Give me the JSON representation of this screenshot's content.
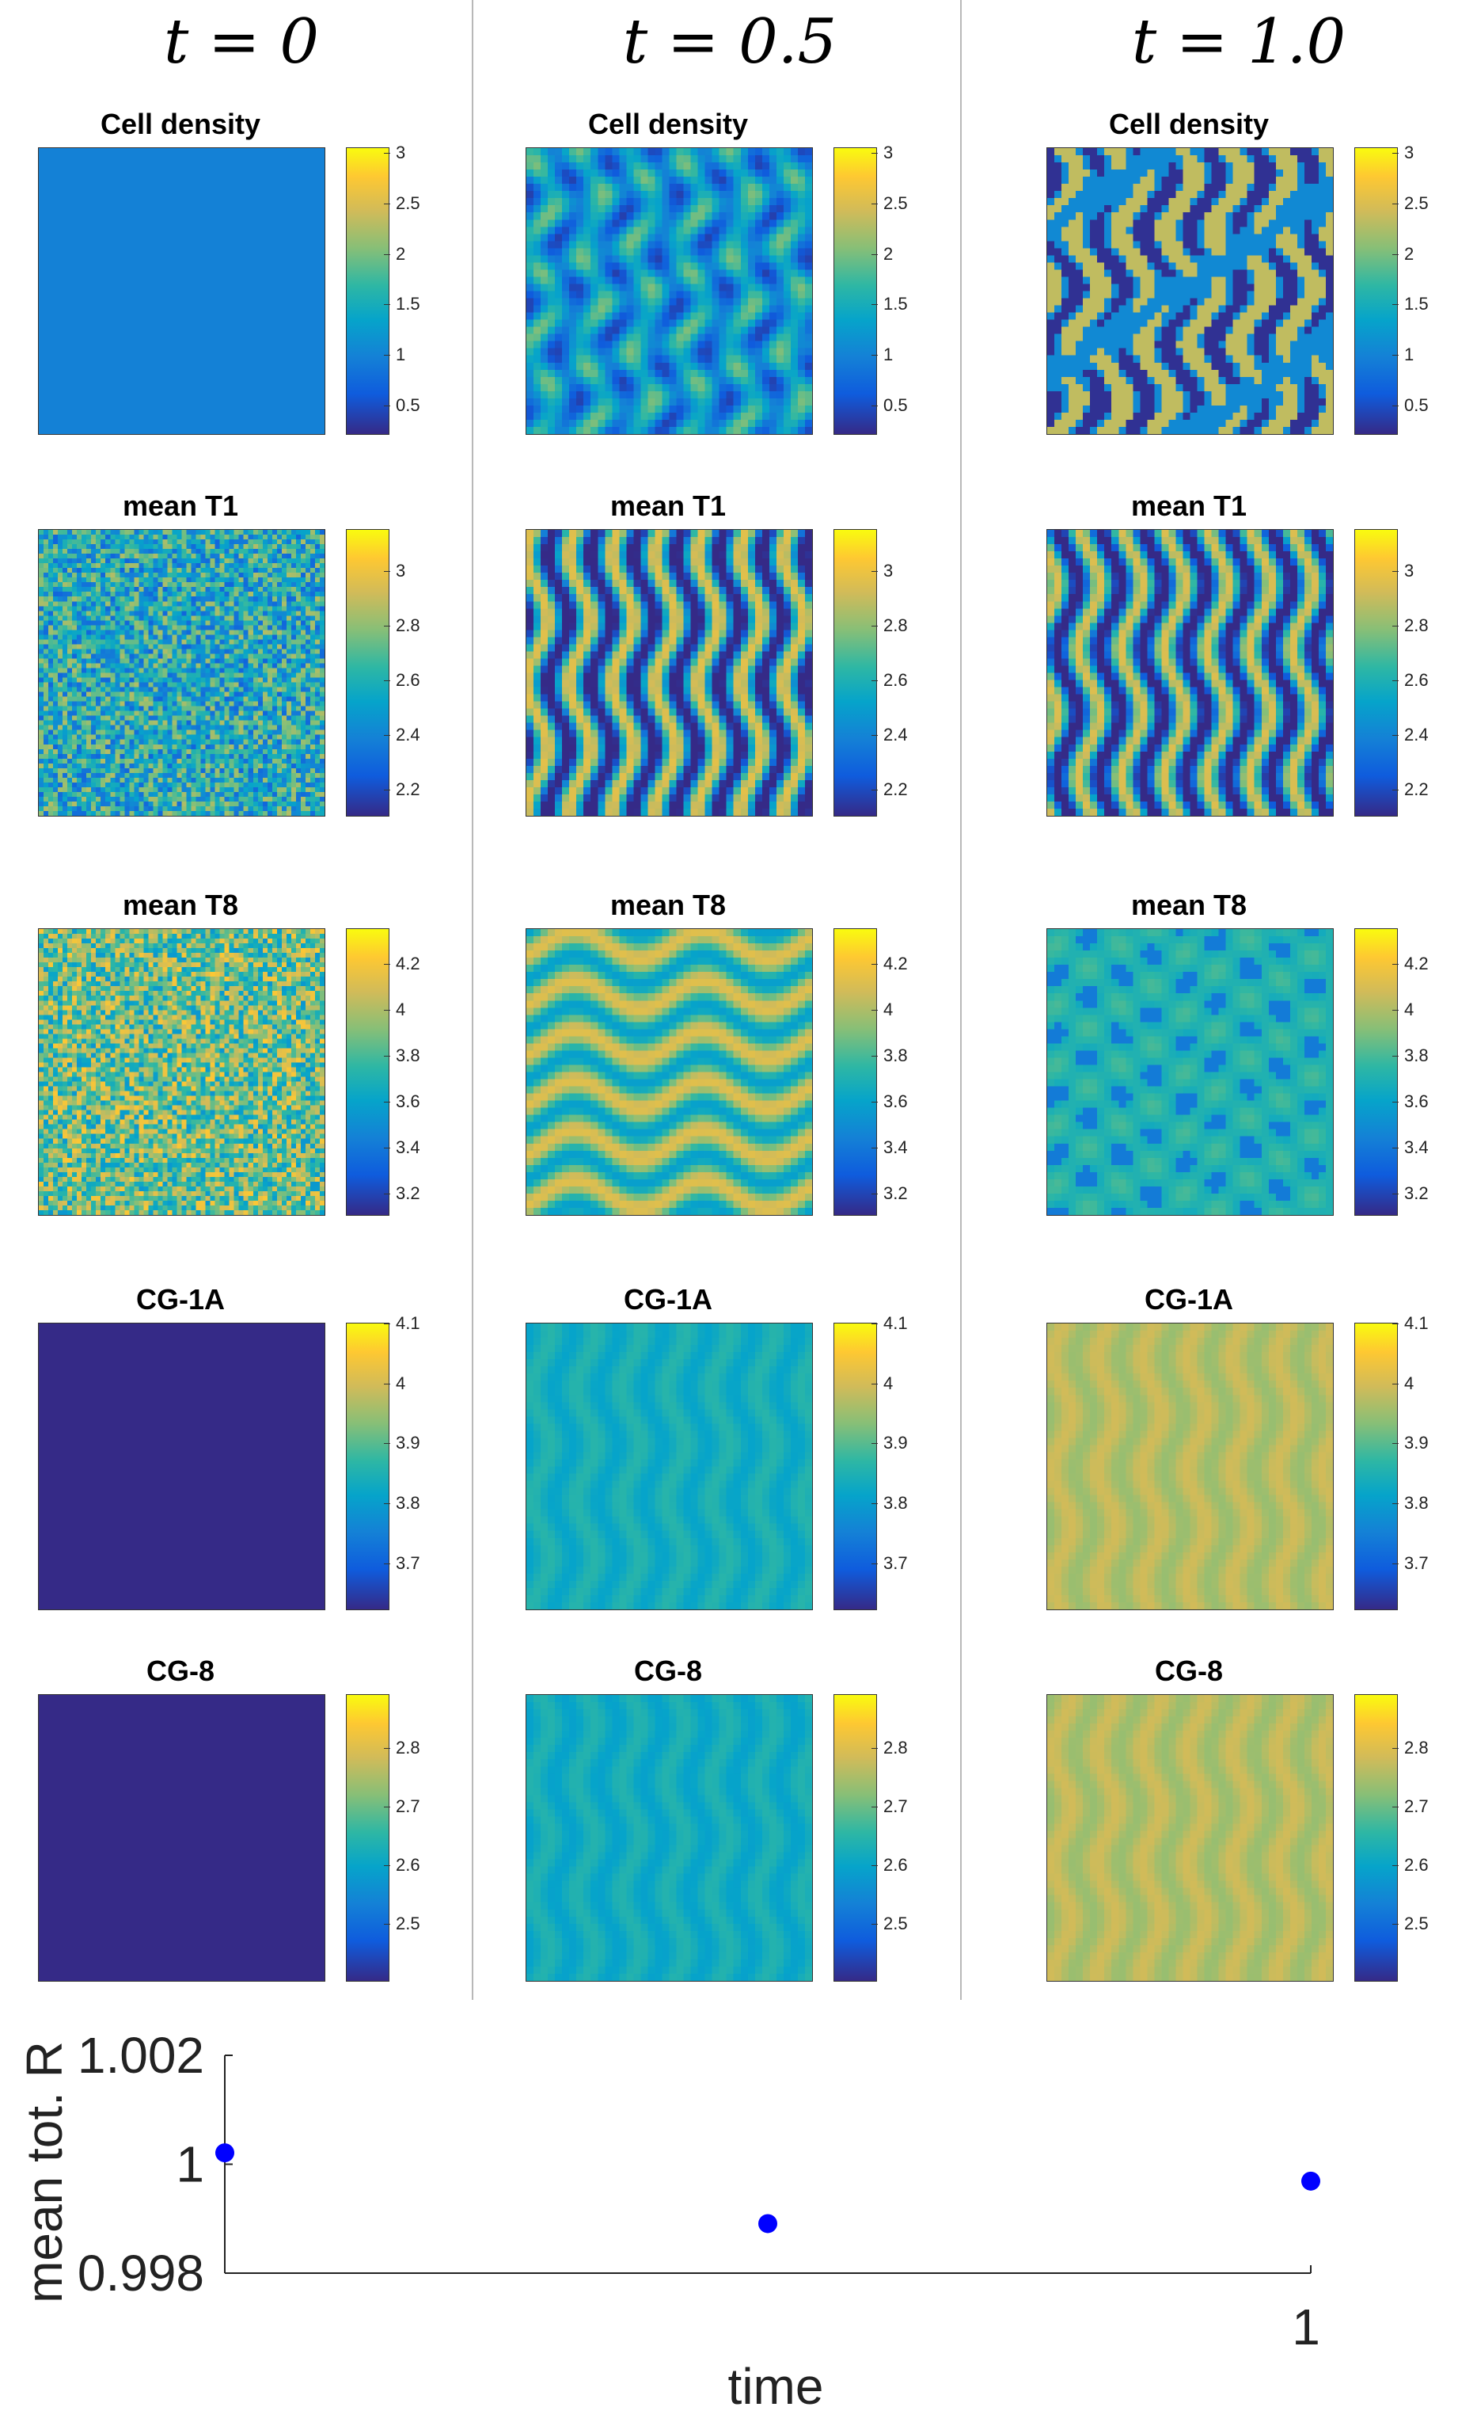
{
  "columns": [
    {
      "label": "t = 0",
      "var": "t",
      "value": "0"
    },
    {
      "label": "t = 0.5",
      "var": "t",
      "value": "0.5"
    },
    {
      "label": "t = 1.0",
      "var": "t",
      "value": "1.0"
    }
  ],
  "panels": [
    {
      "title": "Cell density",
      "ticks": [
        "0.5",
        "1",
        "1.5",
        "2",
        "2.5",
        "3"
      ],
      "tick_values": [
        0.5,
        1,
        1.5,
        2,
        2.5,
        3
      ],
      "range": [
        0.2,
        3.05
      ],
      "states": [
        {
          "pattern": "uniform",
          "level": 0.27
        },
        {
          "pattern": "blobs",
          "level": 0.35
        },
        {
          "pattern": "labyrinth",
          "level": 0.3
        }
      ]
    },
    {
      "title": "mean T1",
      "ticks": [
        "2.2",
        "2.4",
        "2.6",
        "2.8",
        "3"
      ],
      "tick_values": [
        2.2,
        2.4,
        2.6,
        2.8,
        3
      ],
      "range": [
        2.1,
        3.15
      ],
      "states": [
        {
          "pattern": "noise",
          "level": 0.45
        },
        {
          "pattern": "stripes",
          "level": 0.38
        },
        {
          "pattern": "stripes",
          "level": 0.36
        }
      ]
    },
    {
      "title": "mean T8",
      "ticks": [
        "3.2",
        "3.4",
        "3.6",
        "3.8",
        "4",
        "4.2"
      ],
      "tick_values": [
        3.2,
        3.4,
        3.6,
        3.8,
        4,
        4.2
      ],
      "range": [
        3.1,
        4.35
      ],
      "states": [
        {
          "pattern": "noise",
          "level": 0.62
        },
        {
          "pattern": "waves",
          "level": 0.6
        },
        {
          "pattern": "spots",
          "level": 0.48
        }
      ]
    },
    {
      "title": "CG-1A",
      "ticks": [
        "3.7",
        "3.8",
        "3.9",
        "4",
        "4.1"
      ],
      "tick_values": [
        3.7,
        3.8,
        3.9,
        4,
        4.1
      ],
      "range": [
        3.62,
        4.1
      ],
      "states": [
        {
          "pattern": "uniform",
          "level": 0.0
        },
        {
          "pattern": "faint",
          "level": 0.45
        },
        {
          "pattern": "faint",
          "level": 0.73
        }
      ]
    },
    {
      "title": "CG-8",
      "ticks": [
        "2.5",
        "2.6",
        "2.7",
        "2.8"
      ],
      "tick_values": [
        2.5,
        2.6,
        2.7,
        2.8
      ],
      "range": [
        2.4,
        2.89
      ],
      "states": [
        {
          "pattern": "uniform",
          "level": 0.0
        },
        {
          "pattern": "faint",
          "level": 0.44
        },
        {
          "pattern": "faint",
          "level": 0.73
        }
      ]
    }
  ],
  "chart_data": {
    "type": "scatter",
    "title": "",
    "xlabel": "time",
    "ylabel": "mean tot. R",
    "x": [
      0,
      0.5,
      1
    ],
    "y": [
      1.00021,
      0.99891,
      0.99969
    ],
    "xlim": [
      0,
      1
    ],
    "ylim": [
      0.998,
      1.002
    ],
    "xticks": [
      1
    ],
    "xtick_labels": [
      "1"
    ],
    "yticks": [
      0.998,
      1,
      1.002
    ],
    "ytick_labels": [
      "0.998",
      "1",
      "1.002"
    ],
    "marker_color": "#0000ff",
    "grid": false
  },
  "colormap": "parula"
}
